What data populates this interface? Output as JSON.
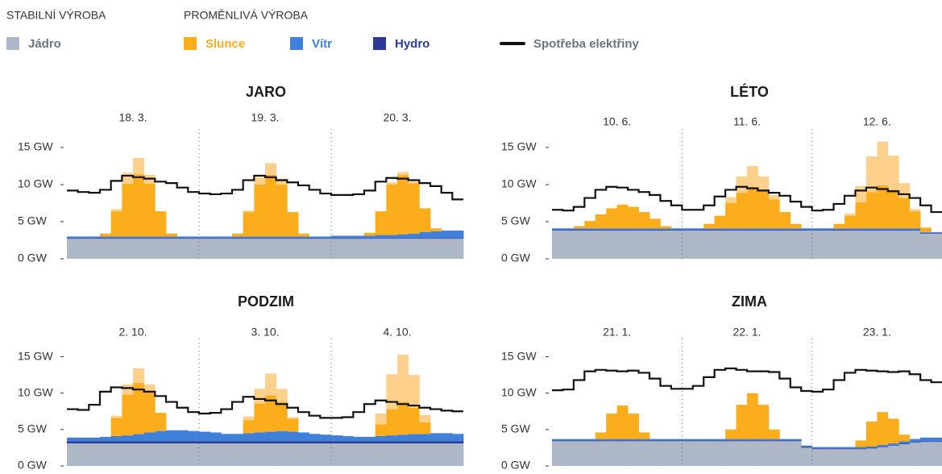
{
  "legend": {
    "stable_title": "STABILNÍ VÝROBA",
    "variable_title": "PROMĚNLIVÁ VÝROBA"
  },
  "chart_data": [
    {
      "type": "stacked-step-area",
      "title": "JARO",
      "days": [
        "18. 3.",
        "19. 3.",
        "20. 3."
      ],
      "ylim": [
        0,
        17.5
      ],
      "yticks": [
        {
          "value": 0,
          "label": "0 GW"
        },
        {
          "value": 5,
          "label": "5 GW"
        },
        {
          "value": 10,
          "label": "10 GW"
        },
        {
          "value": 15,
          "label": "15 GW"
        }
      ],
      "series": [
        {
          "name": "Jádro",
          "color": "#aeb7c6",
          "values": [
            2.7,
            2.7,
            2.7,
            2.7,
            2.7,
            2.7,
            2.7,
            2.7,
            2.7,
            2.7,
            2.7,
            2.7,
            2.7,
            2.7,
            2.7,
            2.7,
            2.7,
            2.7,
            2.7,
            2.7,
            2.7,
            2.7,
            2.7,
            2.7,
            2.7,
            2.7,
            2.7,
            2.7,
            2.7,
            2.7,
            2.7,
            2.7,
            2.7,
            2.7,
            2.7,
            2.7
          ]
        },
        {
          "name": "Hydro",
          "color": "#2b3a98",
          "values": [
            0.1,
            0.1,
            0.1,
            0.1,
            0.1,
            0.1,
            0.1,
            0.1,
            0.1,
            0.1,
            0.1,
            0.1,
            0.1,
            0.1,
            0.1,
            0.1,
            0.1,
            0.1,
            0.1,
            0.1,
            0.1,
            0.1,
            0.1,
            0.1,
            0.1,
            0.1,
            0.1,
            0.1,
            0.1,
            0.1,
            0.1,
            0.1,
            0.1,
            0.1,
            0.1,
            0.1
          ]
        },
        {
          "name": "Vítr",
          "color": "#3f80db",
          "values": [
            0.2,
            0.2,
            0.2,
            0.2,
            0.2,
            0.2,
            0.2,
            0.2,
            0.2,
            0.2,
            0.2,
            0.2,
            0.2,
            0.2,
            0.2,
            0.2,
            0.2,
            0.2,
            0.2,
            0.2,
            0.2,
            0.2,
            0.2,
            0.2,
            0.3,
            0.3,
            0.3,
            0.3,
            0.4,
            0.4,
            0.5,
            0.6,
            0.8,
            0.9,
            1.0,
            1.0
          ]
        },
        {
          "name": "Slunce",
          "color": "#fbad1b",
          "values": [
            0,
            0,
            0,
            0.4,
            3.4,
            7.1,
            8.4,
            7.1,
            3.4,
            0.4,
            0,
            0,
            0,
            0,
            0,
            0.4,
            3.3,
            7.0,
            8.3,
            7.0,
            3.3,
            0.4,
            0,
            0,
            0,
            0,
            0,
            0.4,
            3.2,
            6.8,
            8.0,
            6.8,
            3.2,
            0.4,
            0,
            0
          ]
        },
        {
          "color": "#fdd08c",
          "values": [
            0,
            0,
            0,
            0,
            0.3,
            1.5,
            2.2,
            1.2,
            0,
            0,
            0,
            0,
            0,
            0,
            0,
            0,
            0.2,
            1.0,
            1.6,
            0.8,
            0,
            0,
            0,
            0,
            0,
            0,
            0,
            0,
            0,
            0.3,
            0.4,
            0.2,
            0,
            0,
            0,
            0
          ]
        }
      ],
      "line": {
        "name": "Spotřeba elektřiny",
        "color": "#111111",
        "values": [
          9.2,
          9.0,
          8.9,
          9.3,
          10.5,
          11.2,
          11.0,
          10.8,
          10.4,
          10.2,
          9.6,
          9.0,
          8.8,
          8.7,
          8.8,
          9.3,
          10.6,
          11.2,
          11.0,
          10.6,
          10.3,
          9.9,
          9.3,
          8.8,
          8.6,
          8.6,
          8.7,
          9.2,
          10.4,
          10.9,
          10.8,
          10.6,
          10.2,
          9.8,
          8.9,
          8.0
        ]
      }
    },
    {
      "type": "stacked-step-area",
      "title": "LÉTO",
      "days": [
        "10. 6.",
        "11. 6.",
        "12. 6."
      ],
      "ylim": [
        0,
        17.5
      ],
      "yticks": [
        {
          "value": 0,
          "label": "0 GW"
        },
        {
          "value": 5,
          "label": "5 GW"
        },
        {
          "value": 10,
          "label": "10 GW"
        },
        {
          "value": 15,
          "label": "15 GW"
        }
      ],
      "series": [
        {
          "color": "#aeb7c6",
          "values": [
            3.8,
            3.8,
            3.8,
            3.8,
            3.8,
            3.8,
            3.8,
            3.8,
            3.8,
            3.8,
            3.8,
            3.8,
            3.8,
            3.8,
            3.8,
            3.8,
            3.8,
            3.8,
            3.8,
            3.8,
            3.8,
            3.8,
            3.8,
            3.8,
            3.8,
            3.8,
            3.8,
            3.8,
            3.8,
            3.8,
            3.8,
            3.8,
            3.8,
            3.8,
            3.4,
            3.4
          ]
        },
        {
          "color": "#2b3a98",
          "values": [
            0.1,
            0.1,
            0.1,
            0.1,
            0.1,
            0.1,
            0.1,
            0.1,
            0.1,
            0.1,
            0.1,
            0.1,
            0.1,
            0.1,
            0.1,
            0.1,
            0.1,
            0.1,
            0.1,
            0.1,
            0.1,
            0.1,
            0.1,
            0.1,
            0.1,
            0.1,
            0.1,
            0.1,
            0.1,
            0.1,
            0.1,
            0.1,
            0.1,
            0.1,
            0.1,
            0.1
          ]
        },
        {
          "color": "#3f80db",
          "values": [
            0.2,
            0.2,
            0.2,
            0.2,
            0.2,
            0.2,
            0.2,
            0.2,
            0.2,
            0.2,
            0.2,
            0.2,
            0.2,
            0.2,
            0.2,
            0.2,
            0.2,
            0.2,
            0.2,
            0.2,
            0.2,
            0.2,
            0.2,
            0.2,
            0.2,
            0.2,
            0.2,
            0.2,
            0.2,
            0.2,
            0.2,
            0.2,
            0.2,
            0.2,
            0.1,
            0.1
          ]
        },
        {
          "color": "#fbad1b",
          "values": [
            0,
            0,
            0.3,
            1.0,
            1.9,
            2.7,
            3.2,
            2.9,
            2.2,
            1.3,
            0.3,
            0,
            0,
            0,
            0.6,
            1.7,
            3.4,
            4.8,
            5.6,
            5.0,
            3.9,
            2.2,
            0.6,
            0,
            0,
            0,
            0.6,
            1.7,
            3.5,
            4.9,
            5.8,
            5.2,
            4.1,
            2.3,
            0.6,
            0
          ]
        },
        {
          "color": "#fdd08c",
          "values": [
            0,
            0,
            0,
            0,
            0,
            0,
            0,
            0,
            0,
            0,
            0,
            0,
            0,
            0,
            0,
            0,
            0.8,
            2.2,
            2.8,
            2.0,
            0.6,
            0,
            0,
            0,
            0,
            0,
            0,
            0.3,
            2.2,
            4.8,
            5.9,
            4.6,
            2.0,
            0.3,
            0,
            0
          ]
        }
      ],
      "line": {
        "color": "#111111",
        "values": [
          6.6,
          6.5,
          7.0,
          8.2,
          9.3,
          9.7,
          9.6,
          9.3,
          9.0,
          8.6,
          7.8,
          7.2,
          6.6,
          6.6,
          7.2,
          8.4,
          9.3,
          9.7,
          9.5,
          9.2,
          8.9,
          8.5,
          7.7,
          7.0,
          6.5,
          6.6,
          7.4,
          8.5,
          9.2,
          9.6,
          9.4,
          9.1,
          8.7,
          8.2,
          7.2,
          6.3
        ]
      }
    },
    {
      "type": "stacked-step-area",
      "title": "PODZIM",
      "days": [
        "2. 10.",
        "3. 10.",
        "4. 10."
      ],
      "ylim": [
        0,
        17.5
      ],
      "yticks": [
        {
          "value": 0,
          "label": "0 GW"
        },
        {
          "value": 5,
          "label": "5 GW"
        },
        {
          "value": 10,
          "label": "10 GW"
        },
        {
          "value": 15,
          "label": "15 GW"
        }
      ],
      "series": [
        {
          "color": "#aeb7c6",
          "values": [
            3.1,
            3.1,
            3.1,
            3.1,
            3.1,
            3.1,
            3.1,
            3.1,
            3.1,
            3.1,
            3.1,
            3.1,
            3.1,
            3.1,
            3.1,
            3.1,
            3.1,
            3.1,
            3.1,
            3.1,
            3.1,
            3.1,
            3.1,
            3.1,
            3.1,
            3.1,
            3.1,
            3.1,
            3.1,
            3.1,
            3.1,
            3.1,
            3.1,
            3.1,
            3.1,
            3.1
          ]
        },
        {
          "color": "#2b3a98",
          "values": [
            0.3,
            0.3,
            0.3,
            0.3,
            0.3,
            0.3,
            0.3,
            0.3,
            0.3,
            0.3,
            0.3,
            0.3,
            0.3,
            0.3,
            0.3,
            0.3,
            0.3,
            0.3,
            0.3,
            0.3,
            0.3,
            0.3,
            0.3,
            0.3,
            0.3,
            0.3,
            0.3,
            0.3,
            0.3,
            0.3,
            0.3,
            0.3,
            0.3,
            0.3,
            0.3,
            0.3
          ]
        },
        {
          "color": "#3f80db",
          "values": [
            0.5,
            0.5,
            0.5,
            0.6,
            0.7,
            0.8,
            1.0,
            1.2,
            1.4,
            1.5,
            1.5,
            1.4,
            1.3,
            1.2,
            1.0,
            1.0,
            1.1,
            1.2,
            1.3,
            1.4,
            1.3,
            1.2,
            1.0,
            0.9,
            0.8,
            0.7,
            0.6,
            0.6,
            0.7,
            0.8,
            0.9,
            1.0,
            1.0,
            1.1,
            1.1,
            1.0
          ]
        },
        {
          "color": "#fbad1b",
          "values": [
            0,
            0,
            0,
            0,
            2.5,
            5.6,
            7.0,
            5.6,
            2.5,
            0,
            0,
            0,
            0,
            0,
            0,
            0,
            1.8,
            4.0,
            5.0,
            4.0,
            1.8,
            0,
            0,
            0,
            0,
            0,
            0,
            0,
            1.6,
            3.6,
            4.5,
            3.6,
            1.6,
            0,
            0,
            0
          ]
        },
        {
          "color": "#fdd08c",
          "values": [
            0,
            0,
            0,
            0,
            0.3,
            1.4,
            2.0,
            1.0,
            0,
            0,
            0,
            0,
            0,
            0,
            0,
            0,
            0.5,
            2.0,
            3.0,
            1.8,
            0.2,
            0,
            0,
            0,
            0,
            0,
            0,
            0,
            1.5,
            4.8,
            6.5,
            4.5,
            1.0,
            0,
            0,
            0
          ]
        }
      ],
      "line": {
        "color": "#111111",
        "values": [
          7.8,
          7.7,
          8.4,
          10.2,
          10.8,
          10.7,
          10.5,
          10.2,
          9.6,
          8.8,
          8.0,
          7.4,
          7.2,
          7.3,
          7.8,
          8.8,
          9.5,
          9.2,
          9.0,
          8.5,
          8.0,
          7.4,
          6.9,
          6.6,
          6.6,
          6.7,
          7.4,
          8.5,
          9.0,
          8.8,
          8.5,
          8.3,
          8.0,
          7.8,
          7.6,
          7.5
        ]
      }
    },
    {
      "type": "stacked-step-area",
      "title": "ZIMA",
      "days": [
        "21. 1.",
        "22. 1.",
        "23. 1."
      ],
      "ylim": [
        0,
        17.5
      ],
      "yticks": [
        {
          "value": 0,
          "label": "0 GW"
        },
        {
          "value": 5,
          "label": "5 GW"
        },
        {
          "value": 10,
          "label": "10 GW"
        },
        {
          "value": 15,
          "label": "15 GW"
        }
      ],
      "series": [
        {
          "color": "#aeb7c6",
          "values": [
            3.4,
            3.4,
            3.4,
            3.4,
            3.4,
            3.4,
            3.4,
            3.4,
            3.4,
            3.4,
            3.4,
            3.4,
            3.4,
            3.4,
            3.4,
            3.4,
            3.4,
            3.4,
            3.4,
            3.4,
            3.4,
            3.4,
            3.4,
            2.5,
            2.3,
            2.3,
            2.3,
            2.3,
            2.3,
            2.4,
            2.6,
            2.8,
            3.0,
            3.2,
            3.3,
            3.3
          ]
        },
        {
          "color": "#2b3a98",
          "values": [
            0.1,
            0.1,
            0.1,
            0.1,
            0.1,
            0.1,
            0.1,
            0.1,
            0.1,
            0.1,
            0.1,
            0.1,
            0.1,
            0.1,
            0.1,
            0.1,
            0.1,
            0.1,
            0.1,
            0.1,
            0.1,
            0.1,
            0.1,
            0.1,
            0.1,
            0.1,
            0.1,
            0.1,
            0.1,
            0.1,
            0.1,
            0.1,
            0.1,
            0.1,
            0.1,
            0.1
          ]
        },
        {
          "color": "#3f80db",
          "values": [
            0.2,
            0.2,
            0.2,
            0.2,
            0.2,
            0.2,
            0.2,
            0.2,
            0.2,
            0.2,
            0.2,
            0.2,
            0.2,
            0.2,
            0.2,
            0.2,
            0.2,
            0.2,
            0.2,
            0.2,
            0.2,
            0.2,
            0.2,
            0.2,
            0.2,
            0.2,
            0.2,
            0.2,
            0.2,
            0.2,
            0.2,
            0.2,
            0.3,
            0.4,
            0.5,
            0.5
          ]
        },
        {
          "color": "#fbad1b",
          "values": [
            0,
            0,
            0,
            0,
            0.9,
            3.5,
            4.6,
            3.5,
            0.9,
            0,
            0,
            0,
            0,
            0,
            0,
            0,
            1.3,
            4.7,
            6.3,
            4.7,
            1.3,
            0,
            0,
            0,
            0,
            0,
            0,
            0,
            0.9,
            3.4,
            4.5,
            3.4,
            0.9,
            0,
            0,
            0
          ]
        },
        {
          "color": "#fdd08c",
          "values": [
            0,
            0,
            0,
            0,
            0,
            0,
            0,
            0,
            0,
            0,
            0,
            0,
            0,
            0,
            0,
            0,
            0,
            0,
            0,
            0,
            0,
            0,
            0,
            0,
            0,
            0,
            0,
            0,
            0,
            0,
            0,
            0,
            0,
            0,
            0,
            0
          ]
        }
      ],
      "line": {
        "color": "#111111",
        "values": [
          10.4,
          10.5,
          11.8,
          13.0,
          13.2,
          13.1,
          13.0,
          13.1,
          12.8,
          12.0,
          11.0,
          10.6,
          10.6,
          11.0,
          12.2,
          13.2,
          13.4,
          13.2,
          13.0,
          13.0,
          12.9,
          12.0,
          10.8,
          10.3,
          10.2,
          10.5,
          11.8,
          12.8,
          13.2,
          13.1,
          13.0,
          12.9,
          13.0,
          12.6,
          11.8,
          11.5
        ]
      }
    }
  ]
}
